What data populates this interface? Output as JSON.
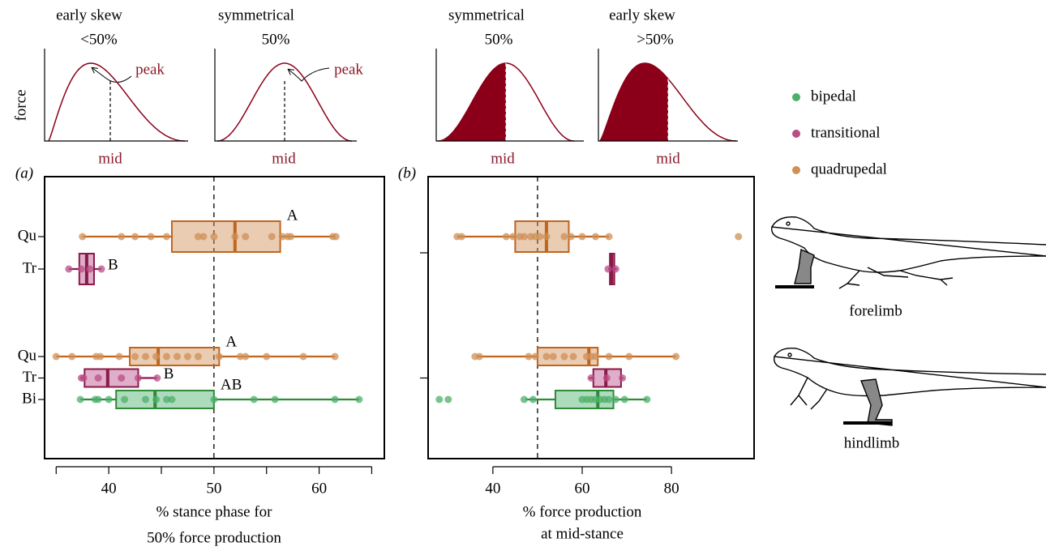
{
  "schematics": [
    {
      "title": "early skew",
      "subtitle": "<50%",
      "peak": "peak",
      "mid": "mid",
      "force": "force"
    },
    {
      "title": "symmetrical",
      "subtitle": "50%",
      "peak": "peak",
      "mid": "mid"
    },
    {
      "title": "symmetrical",
      "subtitle": "50%",
      "mid": "mid"
    },
    {
      "title": "early skew",
      "subtitle": ">50%",
      "mid": "mid"
    }
  ],
  "legend": [
    {
      "name": "bipedal",
      "color": "#4caf6a",
      "line_color": "#2e8b3a"
    },
    {
      "name": "transitional",
      "color": "#b94c86",
      "line_color": "#8b1a4a"
    },
    {
      "name": "quadrupedal",
      "color": "#cf8f55",
      "line_color": "#c0651e"
    }
  ],
  "illustrations": {
    "forelimb": "forelimb",
    "hindlimb": "hindlimb"
  },
  "chart_data": [
    {
      "type": "boxplot",
      "panel_label": "(a)",
      "xlabel": [
        "% stance phase for",
        "50% force production"
      ],
      "xlim": [
        33.9,
        66.2
      ],
      "xticks": [
        40,
        50,
        60
      ],
      "xminorticks": [
        35,
        45,
        55,
        65
      ],
      "reference_x": 50,
      "groups": [
        {
          "rows": [
            {
              "label": "Qu",
              "series": "quadrupedal",
              "min": 37.5,
              "q1": 46,
              "median": 52,
              "q3": 56.3,
              "max": 61.5,
              "letter": "A",
              "points": [
                37.5,
                41.2,
                42.5,
                44,
                45.5,
                48.5,
                49,
                50,
                52,
                53,
                55.5,
                56.5,
                57,
                57.3,
                61.3,
                61.6
              ]
            },
            {
              "label": "Tr",
              "series": "transitional",
              "min": 36.2,
              "q1": 37.2,
              "median": 37.9,
              "q3": 38.6,
              "max": 39.3,
              "letter": "B",
              "points": [
                36.2,
                37.4,
                38.2,
                39.3
              ]
            }
          ]
        },
        {
          "rows": [
            {
              "label": "Qu",
              "series": "quadrupedal",
              "min": 35,
              "q1": 42,
              "median": 44.7,
              "q3": 50.5,
              "max": 61.5,
              "letter": "A",
              "points": [
                35,
                36.5,
                38.8,
                39.2,
                41,
                42.5,
                43.5,
                44.5,
                45.5,
                46.5,
                47.5,
                48.5,
                50.5,
                52.5,
                53,
                55,
                58.5,
                61.5
              ]
            },
            {
              "label": "Tr",
              "series": "transitional",
              "min": 37.3,
              "q1": 37.7,
              "median": 39.9,
              "q3": 42.8,
              "max": 44.6,
              "letter": "B",
              "points": [
                37.4,
                37.6,
                39,
                41.2,
                42.8,
                44.6
              ]
            },
            {
              "label": "Bi",
              "series": "bipedal",
              "min": 37.3,
              "q1": 40.7,
              "median": 44.4,
              "q3": 50,
              "max": 63.8,
              "letter": "AB",
              "points": [
                37.3,
                38.7,
                39,
                40,
                41.5,
                43.5,
                44.5,
                45.5,
                46,
                50,
                53.8,
                55.8,
                61.5,
                63.8
              ]
            }
          ]
        }
      ]
    },
    {
      "type": "boxplot",
      "panel_label": "(b)",
      "xlabel": [
        "% force production",
        "at mid-stance"
      ],
      "xlim": [
        25.5,
        98.5
      ],
      "xticks": [
        40,
        60,
        80
      ],
      "reference_x": 50,
      "groups": [
        {
          "rows": [
            {
              "series": "quadrupedal",
              "min": 32,
              "q1": 45,
              "median": 52,
              "q3": 57,
              "max": 66,
              "points": [
                32,
                33,
                43,
                44.5,
                46,
                47,
                48.5,
                49.5,
                50.5,
                52,
                56,
                57.5,
                60,
                63,
                66,
                95
              ]
            },
            {
              "series": "transitional",
              "min": 65.8,
              "q1": 66.2,
              "median": 66.6,
              "q3": 67.2,
              "max": 67.8,
              "points": [
                65.8,
                67.5
              ]
            }
          ]
        },
        {
          "rows": [
            {
              "series": "quadrupedal",
              "min": 36.5,
              "q1": 50,
              "median": 61.5,
              "q3": 63.5,
              "max": 81,
              "points": [
                36,
                37,
                48,
                49.5,
                52,
                53.5,
                56,
                58,
                61,
                62,
                63,
                66,
                70.5,
                81
              ]
            },
            {
              "series": "transitional",
              "min": 61.5,
              "q1": 62.5,
              "median": 65.3,
              "q3": 68.7,
              "max": 69.2,
              "points": [
                62,
                65.5,
                69
              ]
            },
            {
              "series": "bipedal",
              "min": 47.3,
              "q1": 54,
              "median": 63.5,
              "q3": 67,
              "max": 74.5,
              "points": [
                28,
                30,
                47,
                49,
                60,
                61,
                62,
                63,
                64,
                65,
                66,
                67.5,
                69.5,
                74.5
              ]
            }
          ]
        }
      ]
    }
  ]
}
